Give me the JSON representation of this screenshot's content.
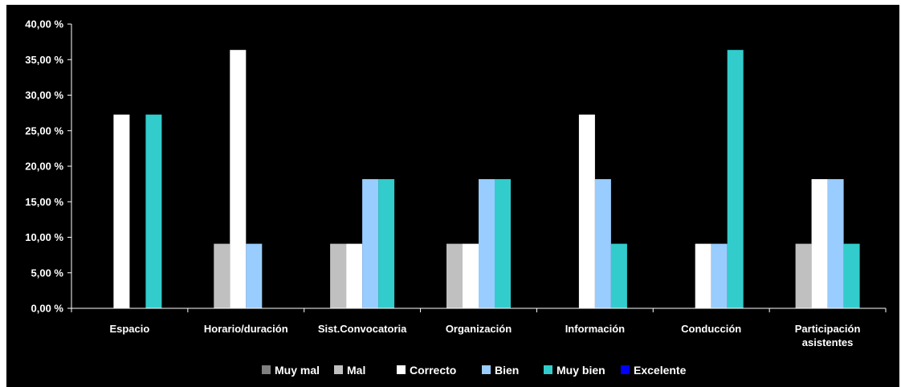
{
  "chart_data": {
    "type": "bar",
    "categories": [
      [
        "Espacio"
      ],
      [
        "Horario/duración"
      ],
      [
        "Sist.Convocatoria"
      ],
      [
        "Organización"
      ],
      [
        "Información"
      ],
      [
        "Conducción"
      ],
      [
        "Participación",
        "asistentes"
      ]
    ],
    "series": [
      {
        "name": "Muy mal",
        "color": "#808080",
        "values": [
          0,
          0,
          0,
          0,
          0,
          0,
          0
        ]
      },
      {
        "name": "Mal",
        "color": "#c0c0c0",
        "values": [
          0,
          9.09,
          9.09,
          9.09,
          0,
          0,
          9.09
        ]
      },
      {
        "name": "Correcto",
        "color": "#ffffff",
        "values": [
          27.27,
          36.36,
          9.09,
          9.09,
          27.27,
          9.09,
          18.18
        ]
      },
      {
        "name": "Bien",
        "color": "#99ccff",
        "values": [
          0,
          9.09,
          18.18,
          18.18,
          18.18,
          9.09,
          18.18
        ]
      },
      {
        "name": "Muy bien",
        "color": "#33cccc",
        "values": [
          27.27,
          0,
          18.18,
          18.18,
          9.09,
          36.36,
          9.09
        ]
      },
      {
        "name": "Excelente",
        "color": "#0000ff",
        "values": [
          0,
          0,
          0,
          0,
          0,
          0,
          0
        ]
      }
    ],
    "y_ticks": [
      "0,00 %",
      "5,00 %",
      "10,00 %",
      "15,00 %",
      "20,00 %",
      "25,00 %",
      "30,00 %",
      "35,00 %",
      "40,00 %"
    ],
    "ylim": [
      0,
      40
    ],
    "y_unit": "%",
    "grid": false,
    "legend_position": "bottom",
    "background": "#000000",
    "axis_color": "#ffffff"
  }
}
